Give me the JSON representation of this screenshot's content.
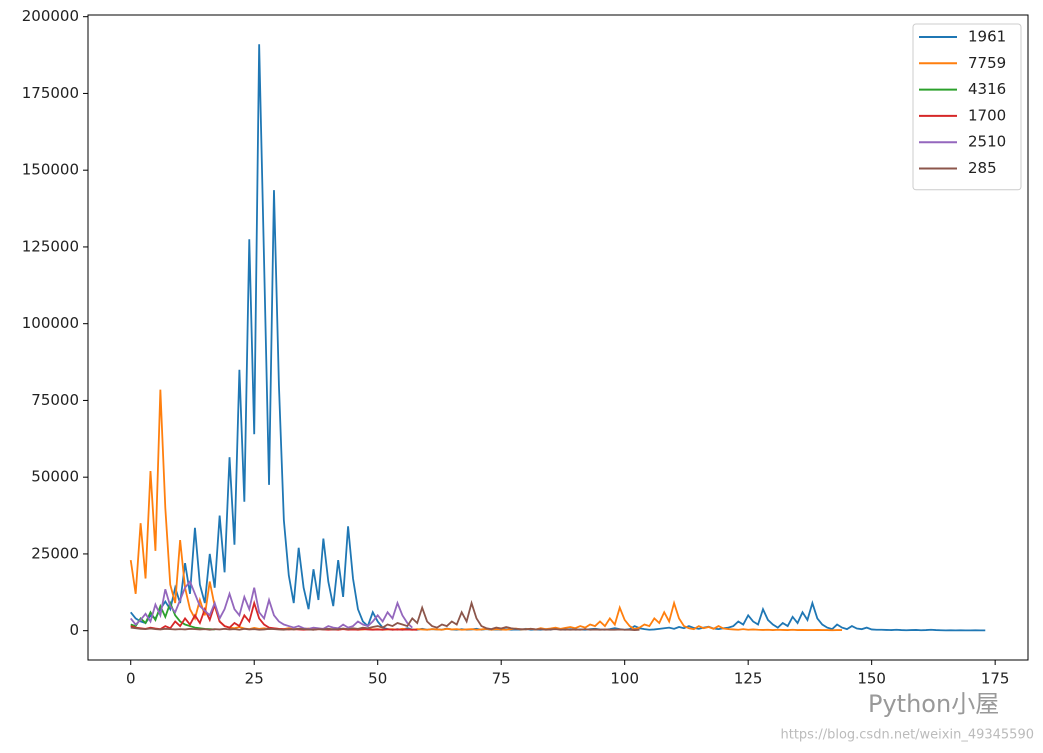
{
  "chart_data": {
    "type": "line",
    "xlim": [
      -8.65,
      181.65
    ],
    "xticks": [
      0,
      25,
      50,
      75,
      100,
      125,
      150,
      175
    ],
    "ylim": [
      -9550,
      200550
    ],
    "yticks": [
      0,
      25000,
      50000,
      75000,
      100000,
      125000,
      150000,
      175000,
      200000
    ],
    "legend": "upper right",
    "grid": false,
    "series": [
      {
        "name": "1961",
        "color": "#1f77b4",
        "values": [
          6000,
          4000,
          3000,
          2500,
          5000,
          4000,
          7000,
          9500,
          7000,
          14000,
          9000,
          22000,
          12000,
          33500,
          15000,
          9000,
          25000,
          14000,
          37500,
          19000,
          56500,
          28000,
          85000,
          42000,
          127500,
          64000,
          191000,
          120000,
          47500,
          143500,
          80000,
          36000,
          18000,
          9000,
          27000,
          14000,
          7000,
          20000,
          10000,
          30000,
          16000,
          8000,
          23000,
          11000,
          34000,
          17000,
          7000,
          3000,
          1500,
          6000,
          3000,
          1000,
          500,
          300,
          500,
          300,
          800,
          400,
          300,
          600,
          300,
          500,
          400,
          300,
          700,
          400,
          300,
          500,
          300,
          400,
          600,
          300,
          500,
          300,
          400,
          300,
          500,
          300,
          400,
          300,
          600,
          300,
          400,
          300,
          500,
          300,
          800,
          400,
          300,
          500,
          300,
          400,
          300,
          500,
          600,
          400,
          300,
          500,
          800,
          500,
          300,
          500,
          1500,
          800,
          500,
          300,
          400,
          600,
          800,
          1000,
          600,
          1200,
          800,
          1500,
          900,
          600,
          1000,
          1300,
          700,
          500,
          800,
          1000,
          1500,
          3000,
          2000,
          5000,
          3000,
          2000,
          7000,
          3500,
          2000,
          1000,
          2500,
          1500,
          4500,
          2500,
          6000,
          3500,
          9000,
          4000,
          2000,
          1000,
          500,
          2000,
          1000,
          500,
          1500,
          700,
          500,
          1000,
          400,
          300,
          300,
          250,
          200,
          300,
          200,
          150,
          200,
          250,
          150,
          200,
          300,
          200,
          150,
          100,
          150,
          100,
          150,
          100,
          100,
          150,
          100,
          100
        ]
      },
      {
        "name": "7759",
        "color": "#ff7f0e",
        "values": [
          23000,
          12000,
          35000,
          17000,
          52000,
          26000,
          78500,
          40000,
          15000,
          9000,
          29500,
          14000,
          7000,
          4000,
          10000,
          5000,
          16000,
          8000,
          3000,
          1500,
          1000,
          800,
          1200,
          700,
          500,
          900,
          600,
          800,
          500,
          700,
          600,
          500,
          800,
          400,
          600,
          500,
          700,
          400,
          500,
          600,
          400,
          500,
          300,
          600,
          400,
          500,
          300,
          400,
          600,
          400,
          500,
          300,
          400,
          500,
          300,
          600,
          400,
          300,
          500,
          400,
          300,
          500,
          400,
          300,
          600,
          400,
          500,
          300,
          400,
          500,
          300,
          400,
          600,
          300,
          500,
          400,
          300,
          500,
          700,
          400,
          500,
          600,
          400,
          800,
          500,
          700,
          1000,
          600,
          900,
          1200,
          800,
          1500,
          1000,
          2000,
          1500,
          3000,
          1500,
          4000,
          2000,
          7500,
          3500,
          1500,
          500,
          1000,
          2000,
          1500,
          4000,
          2500,
          6000,
          3000,
          9000,
          4000,
          1500,
          800,
          500,
          1500,
          800,
          1200,
          600,
          1500,
          700,
          500,
          400,
          300,
          500,
          300,
          400,
          300,
          250,
          300,
          200,
          300,
          250,
          200,
          300,
          200,
          250,
          200,
          200,
          250,
          200,
          200,
          150,
          200,
          200
        ]
      },
      {
        "name": "4316",
        "color": "#2ca02c",
        "values": [
          2000,
          1500,
          4000,
          2500,
          6000,
          3500,
          8000,
          4500,
          9000,
          5000,
          3000,
          2000,
          1500,
          1000,
          800,
          600,
          500,
          400
        ]
      },
      {
        "name": "1700",
        "color": "#d62728",
        "values": [
          1500,
          1000,
          800,
          600,
          1000,
          700,
          500,
          1500,
          800,
          3000,
          1500,
          4000,
          2000,
          5000,
          2500,
          7000,
          3500,
          8500,
          3000,
          1500,
          1000,
          2500,
          1500,
          5000,
          3000,
          9000,
          4000,
          2000,
          1000,
          800,
          600,
          500,
          400,
          500,
          400,
          300,
          400,
          300,
          500,
          400,
          300,
          400,
          300,
          500,
          300,
          400,
          300,
          500,
          400,
          300,
          400,
          300,
          500,
          300,
          400,
          300,
          400,
          300,
          300
        ]
      },
      {
        "name": "2510",
        "color": "#9467bd",
        "values": [
          4000,
          2000,
          3500,
          5500,
          3000,
          8500,
          5000,
          13500,
          8000,
          6000,
          10000,
          14000,
          16000,
          12000,
          8000,
          6500,
          5000,
          9000,
          4000,
          7000,
          12000,
          7000,
          5000,
          11000,
          7000,
          14000,
          6000,
          4000,
          10000,
          5000,
          3000,
          2000,
          1500,
          1000,
          1500,
          800,
          600,
          1000,
          800,
          600,
          1500,
          1000,
          800,
          2000,
          1000,
          1500,
          3000,
          2000,
          1500,
          3000,
          5000,
          3000,
          6000,
          4000,
          9000,
          5000,
          2500,
          1000
        ]
      },
      {
        "name": "285",
        "color": "#8c564b",
        "values": [
          1000,
          800,
          600,
          500,
          700,
          500,
          400,
          600,
          500,
          400,
          500,
          400,
          600,
          500,
          400,
          500,
          300,
          500,
          400,
          600,
          400,
          500,
          300,
          600,
          400,
          500,
          300,
          400,
          600,
          500,
          400,
          300,
          500,
          400,
          600,
          500,
          400,
          300,
          500,
          400,
          600,
          400,
          500,
          700,
          500,
          800,
          600,
          1000,
          800,
          1200,
          1500,
          1000,
          2000,
          1500,
          2500,
          2000,
          1500,
          4000,
          2500,
          7500,
          3000,
          1500,
          1000,
          2000,
          1500,
          3000,
          2000,
          6000,
          3000,
          9000,
          4000,
          1500,
          800,
          500,
          1000,
          700,
          1200,
          800,
          600,
          500,
          400,
          600,
          400,
          500,
          300,
          400,
          500,
          300,
          400,
          300,
          400,
          300,
          500,
          300,
          400,
          300,
          400,
          300,
          300,
          400,
          300,
          300,
          200,
          300
        ]
      }
    ]
  },
  "watermark": {
    "logo": "Python小屋",
    "url": "https://blog.csdn.net/weixin_49345590"
  }
}
